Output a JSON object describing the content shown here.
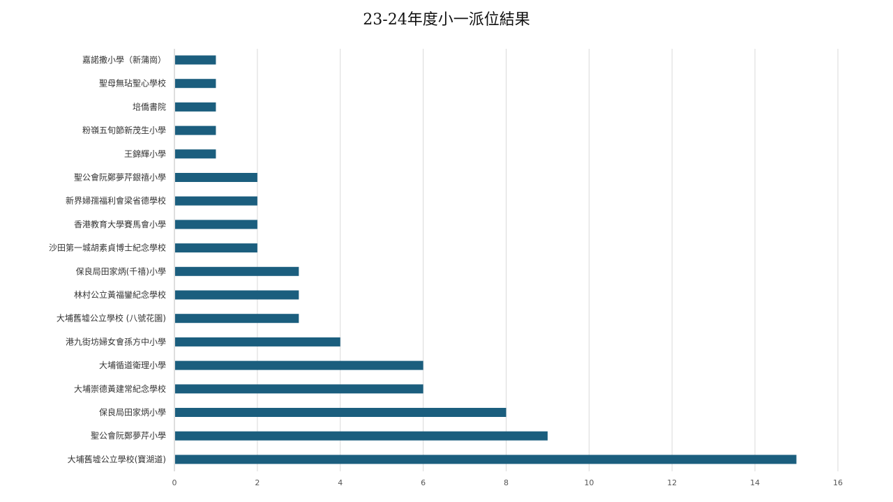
{
  "chart_data": {
    "type": "bar",
    "orientation": "horizontal",
    "title": "23-24年度小一派位結果",
    "xlabel": "",
    "ylabel": "",
    "xlim": [
      0,
      16
    ],
    "x_ticks": [
      0,
      2,
      4,
      6,
      8,
      10,
      12,
      14,
      16
    ],
    "grid": true,
    "legend": "none",
    "bar_color": "#1b5e7e",
    "categories": [
      "嘉諾撒小學（新蒲崗）",
      "聖母無玷聖心學校",
      "培僑書院",
      "粉嶺五旬節新茂生小學",
      "王錦輝小學",
      "聖公會阮鄭夢芹銀禧小學",
      "新界婦孺福利會梁省德學校",
      "香港教育大學賽馬會小學",
      "沙田第一城胡素貞博士紀念學校",
      "保良局田家炳(千禧)小學",
      "林村公立黃福鑾紀念學校",
      "大埔舊墟公立學校 (八號花園)",
      "港九街坊婦女會孫方中小學",
      "大埔循道衛理小學",
      "大埔崇德黃建常紀念學校",
      "保良局田家炳小學",
      "聖公會阮鄭夢芹小學",
      "大埔舊墟公立學校(寶湖道)"
    ],
    "values": [
      1,
      1,
      1,
      1,
      1,
      2,
      2,
      2,
      2,
      3,
      3,
      3,
      4,
      6,
      6,
      8,
      9,
      15
    ]
  }
}
